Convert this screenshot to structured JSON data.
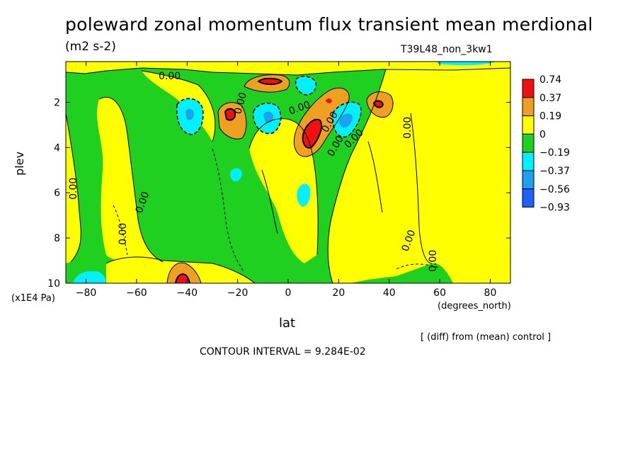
{
  "chart_data": {
    "type": "heatmap",
    "title": "poleward zonal momentum flux transient mean merdional",
    "units": "(m2 s-2)",
    "experiment": "T39L48_non_3kw1",
    "xlabel": "lat",
    "x_units": "(degrees_north)",
    "ylabel": "plev",
    "y_units": "(x1E4 Pa)",
    "x_ticks": [
      -80,
      -60,
      -40,
      -20,
      0,
      20,
      40,
      60,
      80
    ],
    "y_ticks": [
      2,
      4,
      6,
      8,
      10
    ],
    "xlim": [
      -88,
      88
    ],
    "ylim": [
      10,
      0.2
    ],
    "note": "[ (diff) from (mean) control ]",
    "contour_interval": "CONTOUR INTERVAL = 9.284E-02",
    "contour_labels": [
      "0.00",
      "0.00",
      "0.00",
      "0.00",
      "0.00",
      "0.00",
      "0.00",
      "0.00",
      "0.00",
      "0.00",
      "0.00",
      "0.00"
    ],
    "legend": {
      "levels": [
        "0.74",
        "0.37",
        "0.19",
        "0",
        "-0.19",
        "-0.37",
        "-0.56",
        "-0.93"
      ],
      "colors": [
        "#f01010",
        "#f0a020",
        "#ffff00",
        "#20d020",
        "#00f0ff",
        "#1ea0f0",
        "#2060ff"
      ]
    },
    "features": [
      {
        "lat": -5,
        "plev": 1.0,
        "value": 0.74
      },
      {
        "lat": -24,
        "plev": 2.6,
        "value": 0.74
      },
      {
        "lat": 10,
        "plev": 3.5,
        "value": 0.74
      },
      {
        "lat": 36,
        "plev": 2.1,
        "value": 0.74
      },
      {
        "lat": -40,
        "plev": 9.8,
        "value": 0.74
      },
      {
        "lat": -38,
        "plev": 2.5,
        "value": -0.37
      },
      {
        "lat": -10,
        "plev": 2.6,
        "value": -0.56
      },
      {
        "lat": 8,
        "plev": 1.3,
        "value": -0.37
      },
      {
        "lat": 23,
        "plev": 2.7,
        "value": -0.56
      },
      {
        "lat": 7,
        "plev": 6.0,
        "value": -0.37
      },
      {
        "lat": -20,
        "plev": 5.8,
        "value": -0.37
      },
      {
        "lat": -82,
        "plev": 9.8,
        "value": -0.37
      }
    ]
  }
}
